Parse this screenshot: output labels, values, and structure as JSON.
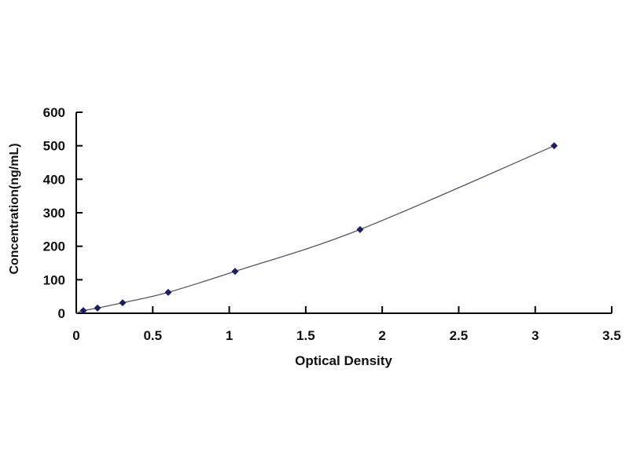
{
  "chart_data": {
    "type": "line",
    "title": "",
    "xlabel": "Optical Density",
    "ylabel": "Concentration(ng/mL)",
    "xlim": [
      0,
      3.5
    ],
    "ylim": [
      0,
      600
    ],
    "xticks": [
      "0",
      "0.5",
      "1",
      "1.5",
      "2",
      "2.5",
      "3",
      "3.5"
    ],
    "yticks": [
      "0",
      "100",
      "200",
      "300",
      "400",
      "500",
      "600"
    ],
    "grid": false,
    "legend": "none",
    "marker": "diamond",
    "colors": {
      "line": "#555566",
      "marker": "#1c1c6b",
      "axis": "#000000"
    },
    "series": [
      {
        "x": [
          0.046,
          0.139,
          0.303,
          0.601,
          1.038,
          1.855,
          3.124
        ],
        "y": [
          7.8,
          15.6,
          31.25,
          62.5,
          125,
          250,
          500
        ]
      }
    ]
  }
}
